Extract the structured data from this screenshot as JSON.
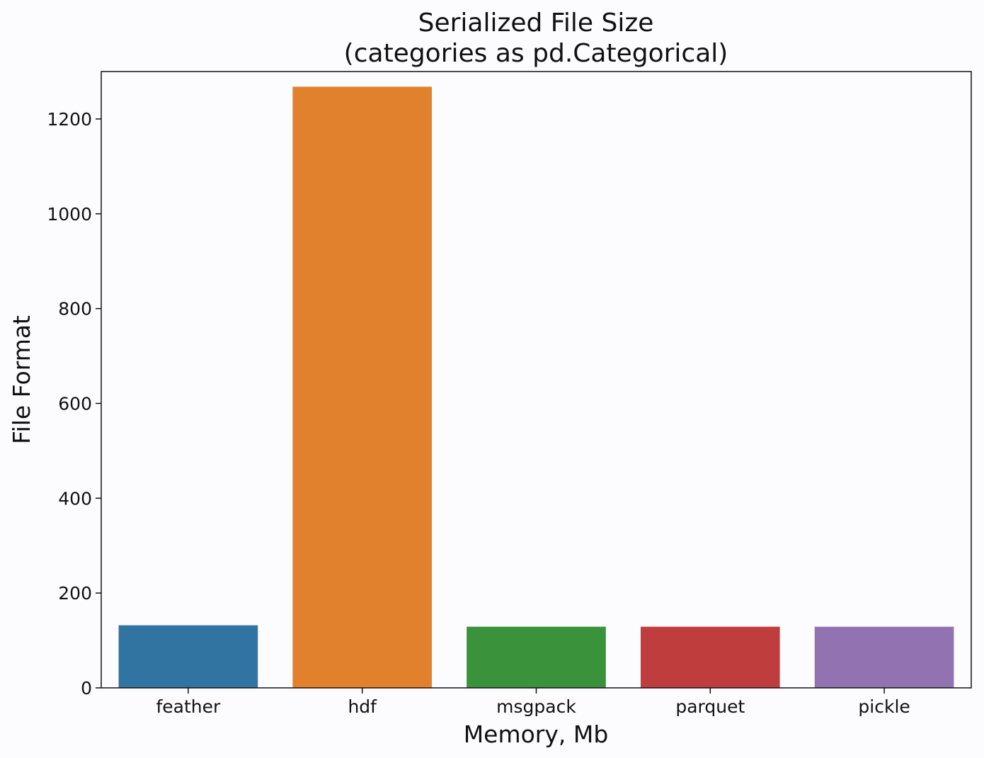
{
  "chart_data": {
    "type": "bar",
    "title": [
      "Serialized File Size",
      "(categories as pd.Categorical)"
    ],
    "xlabel": "Memory, Mb",
    "ylabel": "File Format",
    "categories": [
      "feather",
      "hdf",
      "msgpack",
      "parquet",
      "pickle"
    ],
    "values": [
      132,
      1268,
      129,
      129,
      129
    ],
    "colors": [
      "#3274a1",
      "#e1812c",
      "#3a923a",
      "#c03d3e",
      "#9372b2"
    ],
    "ylim": [
      0,
      1300
    ],
    "yticks": [
      0,
      200,
      400,
      600,
      800,
      1000,
      1200
    ],
    "grid": false,
    "legend": "none"
  }
}
